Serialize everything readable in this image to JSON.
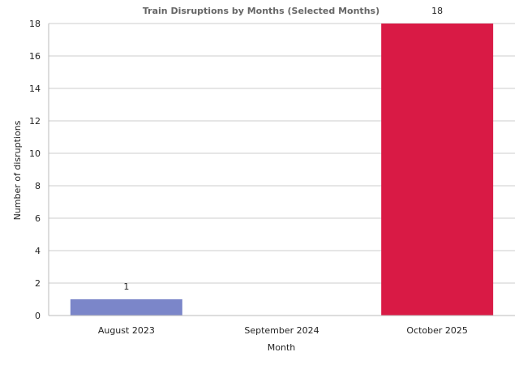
{
  "chart_data": {
    "type": "bar",
    "title": "Train Disruptions by Months (Selected Months)",
    "xlabel": "Month",
    "ylabel": "Number of disruptions",
    "categories": [
      "August 2023",
      "September 2024",
      "October 2025"
    ],
    "values": [
      1,
      0,
      18
    ],
    "data_labels": [
      "1",
      "",
      "18"
    ],
    "colors": [
      "#7b86c9",
      "#7b86c9",
      "#d91a45"
    ],
    "ylim": [
      0,
      18
    ],
    "yticks": [
      0,
      2,
      4,
      6,
      8,
      10,
      12,
      14,
      16,
      18
    ],
    "grid": true,
    "legend": "none"
  }
}
